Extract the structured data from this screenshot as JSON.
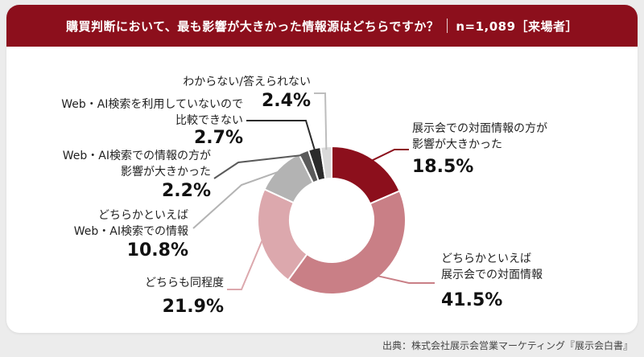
{
  "header": {
    "question": "購買判断において、最も影響が大きかった情報源はどちらですか？",
    "sample": "n=1,089［来場者］"
  },
  "source": "出典：株式会社展示会営業マーケティング『展示会白書』",
  "chart_data": {
    "type": "pie",
    "donut": true,
    "title": "購買判断において、最も影響が大きかった情報源はどちらですか？",
    "slices": [
      {
        "label_lines": [
          "展示会での対面情報の方が",
          "影響が大きかった"
        ],
        "value": 18.5,
        "display": "18.5%",
        "color": "#8c0f1c"
      },
      {
        "label_lines": [
          "どちらかといえば",
          "展示会での対面情報"
        ],
        "value": 41.5,
        "display": "41.5%",
        "color": "#c97f86"
      },
      {
        "label_lines": [
          "どちらも同程度"
        ],
        "value": 21.9,
        "display": "21.9%",
        "color": "#dca8ad"
      },
      {
        "label_lines": [
          "どちらかといえば",
          "Web・AI検索での情報"
        ],
        "value": 10.8,
        "display": "10.8%",
        "color": "#b3b3b3"
      },
      {
        "label_lines": [
          "Web・AI検索での情報の方が",
          "影響が大きかった"
        ],
        "value": 2.2,
        "display": "2.2%",
        "color": "#5a5a5a"
      },
      {
        "label_lines": [
          "Web・AI検索を利用していないので",
          "比較できない"
        ],
        "value": 2.7,
        "display": "2.7%",
        "color": "#2b2b2b"
      },
      {
        "label_lines": [
          "わからない/答えられない"
        ],
        "value": 2.4,
        "display": "2.4%",
        "color": "#d9d9d9"
      }
    ]
  }
}
